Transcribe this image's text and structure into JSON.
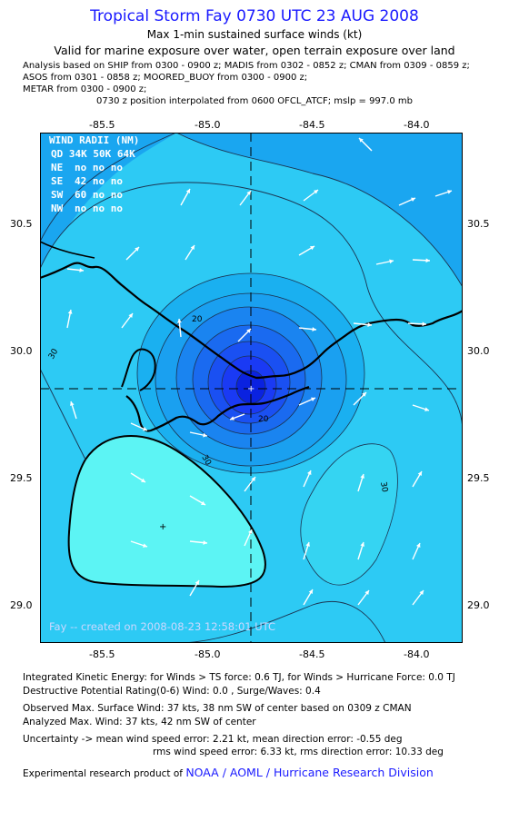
{
  "header": {
    "title": "Tropical Storm Fay 0730 UTC 23 AUG 2008",
    "subtitle": "Max 1-min sustained surface winds (kt)",
    "validity": "Valid for marine exposure over water, open terrain exposure over land",
    "analysis_lines": [
      "Analysis based on  SHIP from 0300 - 0900 z;  MADIS from 0302 - 0852 z;  CMAN from 0309 - 0859 z;",
      "ASOS from 0301 - 0858 z;  MOORED_BUOY from 0300 - 0900 z;",
      "METAR from 0300 - 0900 z;"
    ],
    "position_note": "0730 z position interpolated from 0600 OFCL_ATCF; mslp = 997.0 mb"
  },
  "axes": {
    "lon_ticks": [
      "-85.5",
      "-85.0",
      "-84.5",
      "-84.0"
    ],
    "lat_ticks": [
      "30.5",
      "30.0",
      "29.5",
      "29.0"
    ],
    "lon_range": [
      -85.8,
      -83.8
    ],
    "lat_range": [
      28.85,
      30.85
    ]
  },
  "wind_radii": {
    "header": "WIND RADII (NM)",
    "columns": "QD  34K  50K  64K",
    "rows": [
      {
        "label": "NE",
        "values": "no  no  no"
      },
      {
        "label": "SE",
        "values": "42  no  no"
      },
      {
        "label": "SW",
        "values": "60  no  no"
      },
      {
        "label": "NW",
        "values": "no  no  no"
      }
    ]
  },
  "contour_labels": [
    "20",
    "30",
    "20",
    "30",
    "30"
  ],
  "storm_center": {
    "lon": -84.8,
    "lat": 29.85
  },
  "credit": "Fay -- created on 2008-08-23 12:58:01 UTC",
  "footer": {
    "ike": "Integrated Kinetic Energy:  for Winds > TS force: 0.6 TJ,  for Winds > Hurricane Force: 0.0 TJ",
    "dpr": "Destructive Potential Rating(0-6)   Wind: 0.0 , Surge/Waves: 0.4",
    "observed": "Observed Max. Surface Wind: 37 kts, 38 nm SW of center based on 0309 z CMAN",
    "analyzed": "Analyzed Max. Wind: 37 kts, 42 nm SW of center",
    "uncertainty1": "Uncertainty -> mean wind speed error: 2.21 kt,   mean direction error:  -0.55 deg",
    "uncertainty2": "rms wind speed error: 6.33 kt,   rms direction error: 10.33 deg",
    "product_prefix": "Experimental research product of",
    "product_link": "NOAA / AOML / Hurricane Research Division"
  },
  "colors": {
    "title": "#1a1aff",
    "calm": "#5cf4f4",
    "weak": "#2dcaf4",
    "mid": "#1aa6f0",
    "strong": "#1a3af4",
    "core": "#0a22e0"
  }
}
